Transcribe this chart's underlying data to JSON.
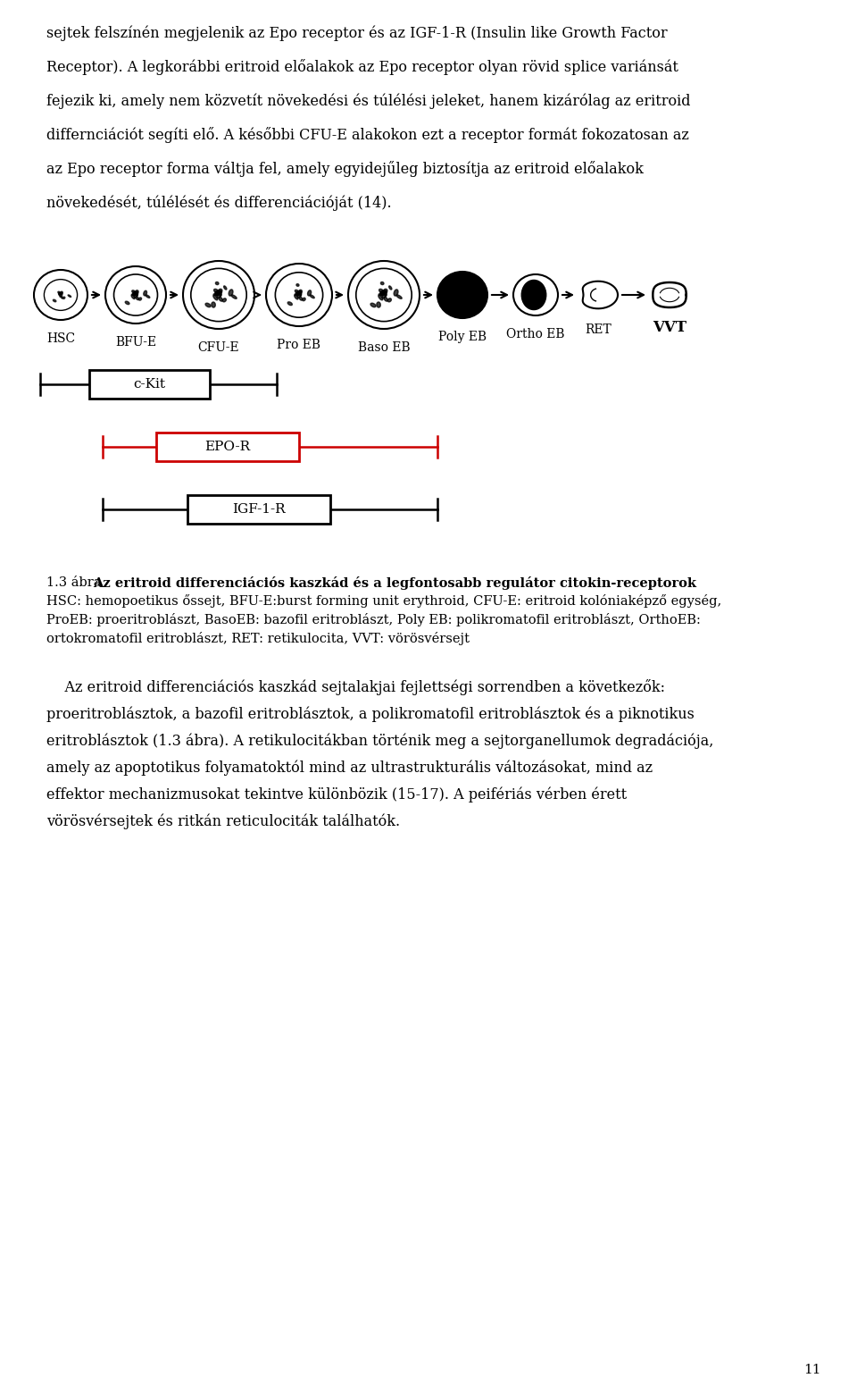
{
  "page_width": 9.6,
  "page_height": 15.61,
  "bg_color": "#ffffff",
  "top_lines": [
    "sejtek felszínén megjelenik az Epo receptor és az IGF-1-R (Insulin like Growth Factor",
    "Receptor). A legkorábbi eritroid előalakok az Epo receptor olyan rövid splice variánsát",
    "fejezik ki, amely nem közvetít növekedési és túlélési jeleket, hanem kizárólag az eritroid",
    "differnciációt segíti elő. A későbbi CFU-E alakokon ezt a receptor formát fokozatosan az",
    "az Epo receptor forma váltja fel, amely egyidejűleg biztosítja az eritroid előalakok",
    "növekedését, túlélését és differenciációját (14)."
  ],
  "cell_labels": [
    "HSC",
    "BFU-E",
    "CFU-E",
    "Pro EB",
    "Baso EB",
    "Poly EB",
    "Ortho EB",
    "RET",
    "VVT"
  ],
  "bar_labels": [
    "c-Kit",
    "EPO-R",
    "IGF-1-R"
  ],
  "bar_colors": [
    "#000000",
    "#cc0000",
    "#000000"
  ],
  "caption_prefix": "1.3 ábra ",
  "caption_bold": "Az eritroid differenciációs kaszkád és a legfontosabb regulátor citokin-receptorok",
  "caption_lines": [
    "HSC: hemopoetikus őssejt, BFU-E:burst forming unit erythroid, CFU-E: eritroid kolóniaképző egység,",
    "ProEB: proeritroblászt, BasoEB: bazofil eritroblászt, Poly EB: polikromatofil eritroblászt, OrthoEB:",
    "ortokromatofil eritroblászt, RET: retikulocita, VVT: vörösvérsejt"
  ],
  "body_lines": [
    "    Az eritroid differenciációs kaszkád sejtalakjai fejlettségi sorrendben a következők:",
    "proeritroblásztok, a bazofil eritroblásztok, a polikromatofil eritroblásztok és a piknotikus",
    "eritroblásztok (1.3 ábra). A retikulocitákban történik meg a sejtorganellumok degradációja,",
    "amely az apoptotikus folyamatoktól mind az ultrastrukturális változásokat, mind az",
    "effektor mechanizmusokat tekintve különbözik (15-17). A peifériás vérben érett",
    "vörösvérsejtek és ritkán reticulociták találhatók."
  ],
  "page_number": "11"
}
